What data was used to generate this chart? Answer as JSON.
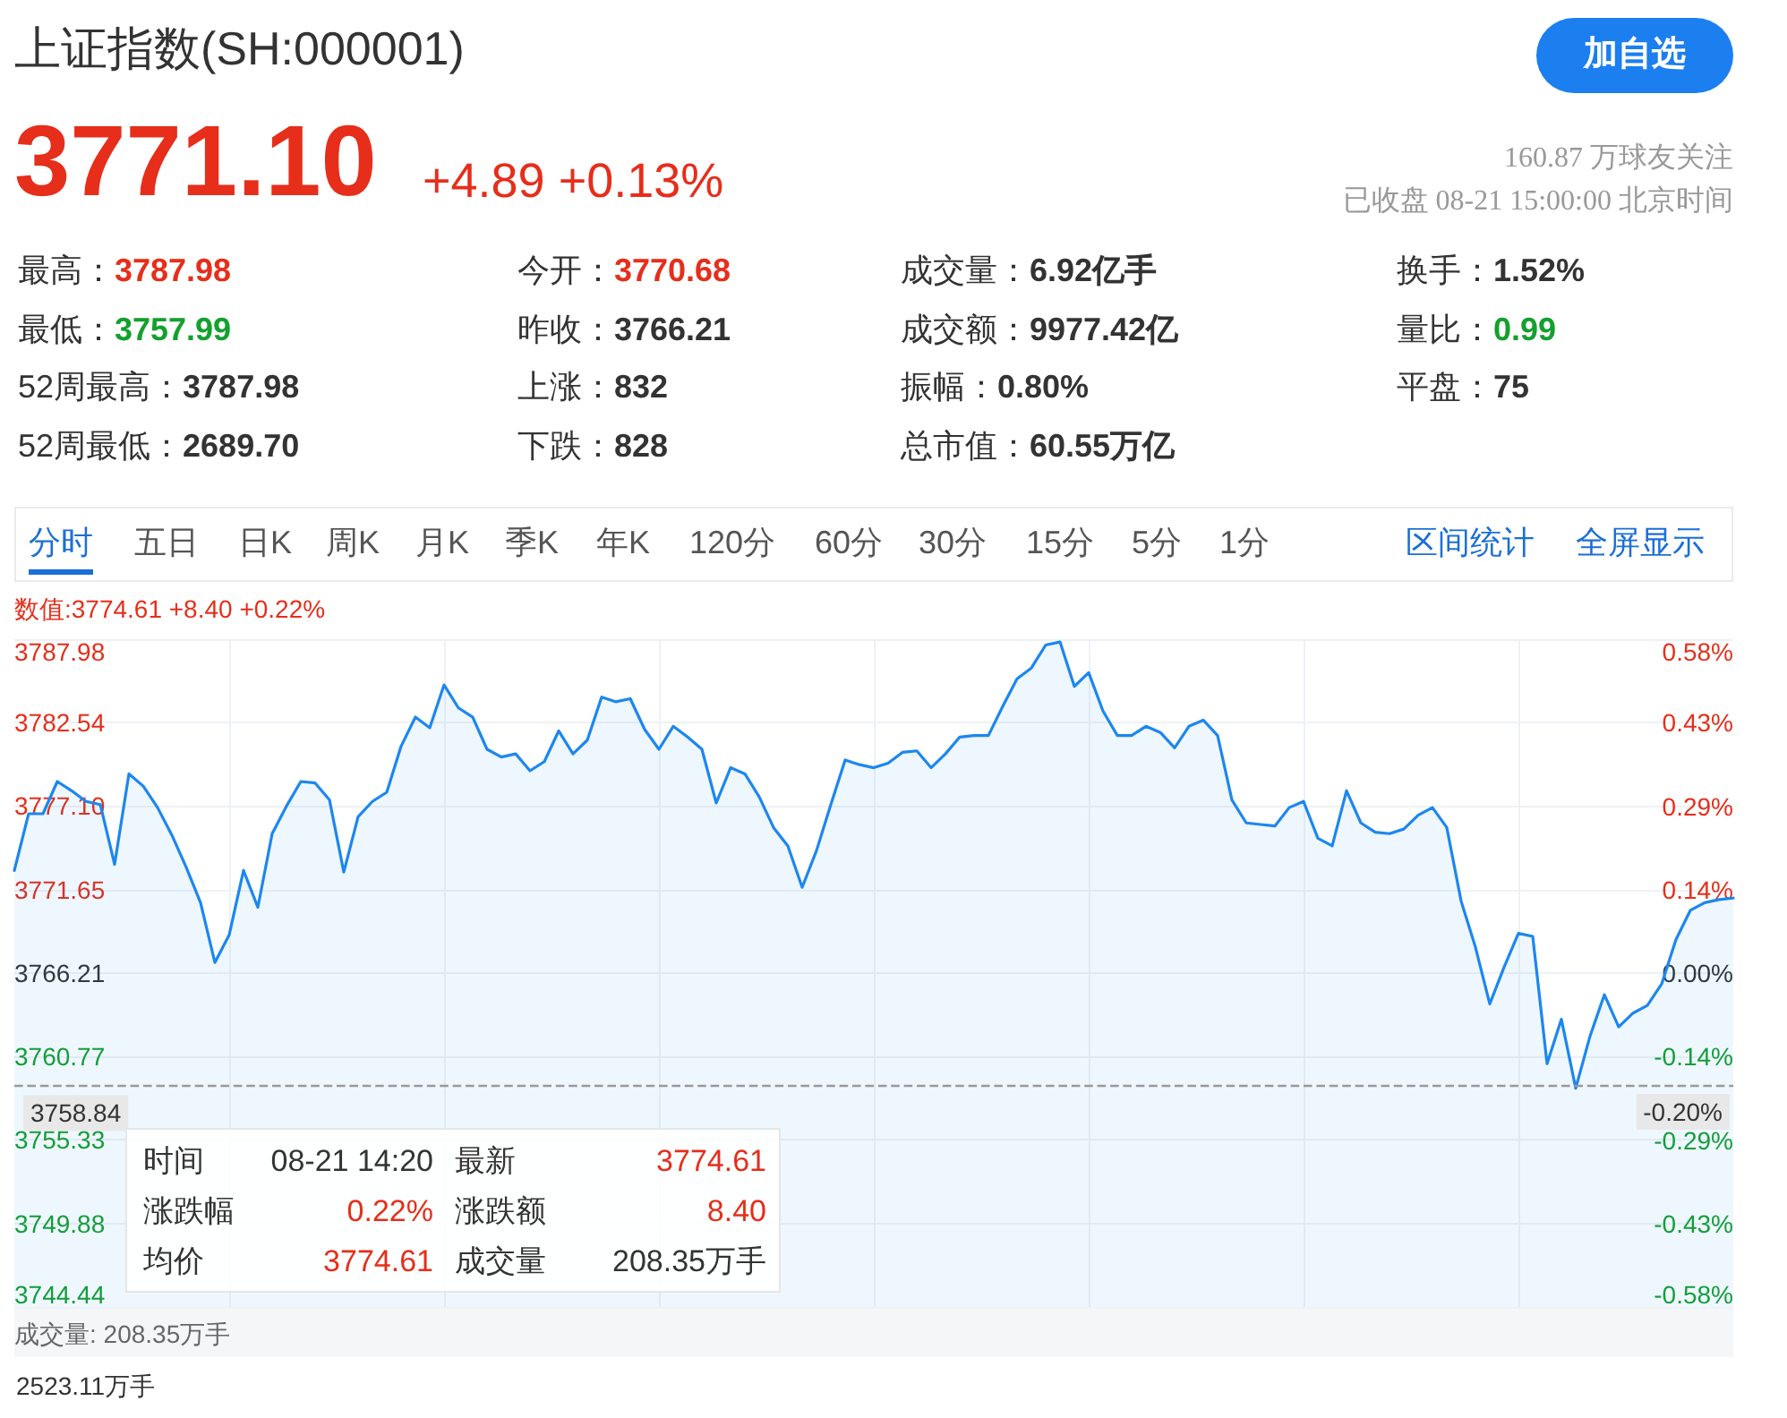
{
  "chart_data": {
    "type": "area",
    "title": "上证指数(SH:000001)",
    "annotations": [
      "3771.10",
      "+4.89 +0.13%",
      "160.87 万球友关注",
      "已收盘 08-21 15:00:00 北京时间",
      "加自选",
      "最高：3787.98",
      "今开：3770.68",
      "成交量：6.92亿手",
      "换手：1.52%",
      "最低：3757.99",
      "昨收：3766.21",
      "成交额：9977.42亿",
      "量比：0.99",
      "52周最高：3787.98",
      "上涨：832",
      "振幅：0.80%",
      "平盘：75",
      "52周最低：2689.70",
      "下跌：828",
      "总市值：60.55万亿",
      "分时",
      "五日",
      "日K",
      "周K",
      "月K",
      "季K",
      "年K",
      "120分",
      "60分",
      "30分",
      "15分",
      "5分",
      "1分",
      "区间统计",
      "全屏显示",
      "数值:3774.61 +8.40 +0.22%",
      "时间",
      "08-21 14:20",
      "最新",
      "3774.61",
      "涨跌幅",
      "0.22%",
      "涨跌额",
      "8.40",
      "均价",
      "3774.61",
      "成交量",
      "208.35万手",
      "成交量: 208.35万手",
      "2523.11万手",
      "-0.20%"
    ],
    "categories": [
      null,
      null,
      null,
      null,
      null,
      null,
      null,
      null,
      null,
      null,
      null,
      null,
      null,
      null,
      null,
      null,
      null,
      null,
      null,
      null,
      null,
      null,
      null,
      null,
      null,
      null,
      null,
      null,
      null,
      null,
      null,
      null,
      null,
      null,
      null,
      null,
      null,
      null,
      null,
      null,
      null,
      null,
      null,
      null,
      null,
      null,
      null,
      null,
      null,
      null,
      null,
      null,
      null,
      null,
      null,
      null,
      null,
      null,
      null,
      null,
      null,
      null,
      null,
      null,
      null,
      null,
      null,
      null,
      null,
      null,
      null,
      null,
      null,
      null,
      null,
      null,
      null,
      null,
      null,
      null,
      null,
      null,
      null,
      null,
      null,
      null,
      null,
      null,
      null,
      null,
      null,
      null,
      null,
      null,
      null,
      null,
      null,
      null,
      null,
      null,
      null,
      null,
      null,
      null,
      null,
      null,
      null,
      null,
      null,
      null,
      null,
      null,
      null,
      null,
      null,
      null,
      null,
      null,
      null,
      null,
      null
    ],
    "values": [
      3772.9,
      3776.6,
      3776.6,
      3778.7,
      3778.1,
      3777.4,
      3777.2,
      3773.3,
      3779.2,
      3778.4,
      3777.0,
      3775.2,
      3773.1,
      3770.8,
      3766.9,
      3768.7,
      3772.9,
      3770.5,
      3775.3,
      3777.1,
      3778.7,
      3778.6,
      3777.5,
      3772.8,
      3776.4,
      3777.4,
      3778.0,
      3781.0,
      3782.9,
      3782.2,
      3785.0,
      3783.5,
      3782.9,
      3780.8,
      3780.3,
      3780.5,
      3779.4,
      3780.0,
      3782.0,
      3780.5,
      3781.4,
      3784.2,
      3783.9,
      3784.1,
      3782.1,
      3780.8,
      3782.3,
      3781.6,
      3780.8,
      3777.3,
      3779.6,
      3779.2,
      3777.7,
      3775.7,
      3774.5,
      3771.8,
      3774.2,
      3777.2,
      3780.1,
      3779.8,
      3779.6,
      3779.9,
      3780.6,
      3780.7,
      3779.6,
      3780.5,
      3781.6,
      3781.7,
      3781.7,
      3783.6,
      3785.4,
      3786.1,
      3787.6,
      3787.8,
      3784.9,
      3785.8,
      3783.3,
      3781.7,
      3781.7,
      3782.3,
      3781.9,
      3780.9,
      3782.3,
      3782.7,
      3781.7,
      3777.5,
      3776.0,
      3775.9,
      3775.8,
      3777.0,
      3777.4,
      3775.0,
      3774.5,
      3778.1,
      3776.0,
      3775.4,
      3775.3,
      3775.6,
      3776.5,
      3777.0,
      3775.7,
      3770.9,
      3767.9,
      3764.2,
      3766.6,
      3768.8,
      3768.6,
      3760.3,
      3763.2,
      3758.7,
      3762.1,
      3764.8,
      3762.7,
      3763.6,
      3764.1,
      3765.5,
      3768.4,
      3770.3,
      3770.8,
      3771.0,
      3771.1
    ],
    "color": "#1c87f0",
    "marker": "none",
    "line_style": "solid",
    "grid": true,
    "ylim": [
      3744.44,
      3787.98
    ],
    "yticks": [
      {
        "value": 3744.44,
        "label": "3744.44"
      },
      {
        "value": 3749.88,
        "label": "3749.88"
      },
      {
        "value": 3755.33,
        "label": "3755.33"
      },
      {
        "value": 3760.77,
        "label": "3760.77"
      },
      {
        "value": 3766.21,
        "label": "3766.21"
      },
      {
        "value": 3771.65,
        "label": "3771.65"
      },
      {
        "value": 3777.1,
        "label": "3777.10"
      },
      {
        "value": 3782.54,
        "label": "3782.54"
      },
      {
        "value": 3787.98,
        "label": "3787.98"
      }
    ],
    "y2lim": [
      -0.578,
      0.578
    ],
    "y2ticks": [
      {
        "value": -0.578,
        "label": "-0.58%"
      },
      {
        "value": -0.4335,
        "label": "-0.43%"
      },
      {
        "value": -0.289,
        "label": "-0.29%"
      },
      {
        "value": -0.1445,
        "label": "-0.14%"
      },
      {
        "value": 0,
        "label": "0.00%"
      },
      {
        "value": 0.1445,
        "label": "0.14%"
      },
      {
        "value": 0.289,
        "label": "0.29%"
      },
      {
        "value": 0.4335,
        "label": "0.43%"
      },
      {
        "value": 0.578,
        "label": "0.58%"
      }
    ],
    "ref_lines": [
      {
        "axis": "y",
        "value": 3758.84,
        "label": "3758.84"
      }
    ]
  }
}
